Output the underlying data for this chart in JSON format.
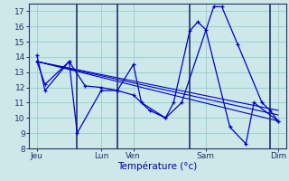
{
  "background_color": "#cce8e8",
  "grid_color": "#99cccc",
  "line_color": "#0000cc",
  "xlabel": "Température (°c)",
  "ylim": [
    8,
    17.5
  ],
  "yticks": [
    8,
    9,
    10,
    11,
    12,
    13,
    14,
    15,
    16,
    17
  ],
  "xlim": [
    0,
    16
  ],
  "xtick_positions": [
    0.5,
    4.5,
    6.5,
    11.0,
    15.5
  ],
  "xtick_labels": [
    "Jeu",
    "Lun",
    "Ven",
    "Sam",
    "Dim"
  ],
  "vline_positions": [
    3.0,
    5.5,
    10.0,
    15.0
  ],
  "series": [
    {
      "x": [
        0.5,
        1.0,
        2.5,
        3.0,
        4.5,
        5.5,
        6.5,
        7.0,
        8.5,
        9.0,
        10.0,
        10.5,
        11.0,
        12.5,
        13.5,
        14.0,
        15.5
      ],
      "y": [
        14.1,
        11.8,
        13.7,
        9.0,
        11.8,
        11.8,
        13.5,
        11.0,
        10.0,
        11.0,
        15.7,
        16.3,
        15.8,
        9.4,
        8.3,
        11.0,
        9.8
      ],
      "style": "line_marker"
    },
    {
      "x": [
        0.5,
        1.0,
        2.5,
        3.5,
        4.5,
        5.5,
        6.5,
        7.5,
        8.5,
        9.5,
        11.5,
        12.0,
        13.0,
        14.5,
        15.0,
        15.5
      ],
      "y": [
        13.7,
        12.2,
        13.7,
        12.1,
        12.0,
        11.8,
        11.5,
        10.5,
        10.0,
        11.0,
        17.3,
        17.3,
        14.8,
        11.0,
        10.5,
        9.8
      ],
      "style": "line_marker"
    },
    {
      "x": [
        0.5,
        15.5
      ],
      "y": [
        13.7,
        9.8
      ],
      "style": "trend"
    },
    {
      "x": [
        0.5,
        15.5
      ],
      "y": [
        13.7,
        10.2
      ],
      "style": "trend"
    },
    {
      "x": [
        0.5,
        15.5
      ],
      "y": [
        13.7,
        10.5
      ],
      "style": "trend"
    }
  ]
}
